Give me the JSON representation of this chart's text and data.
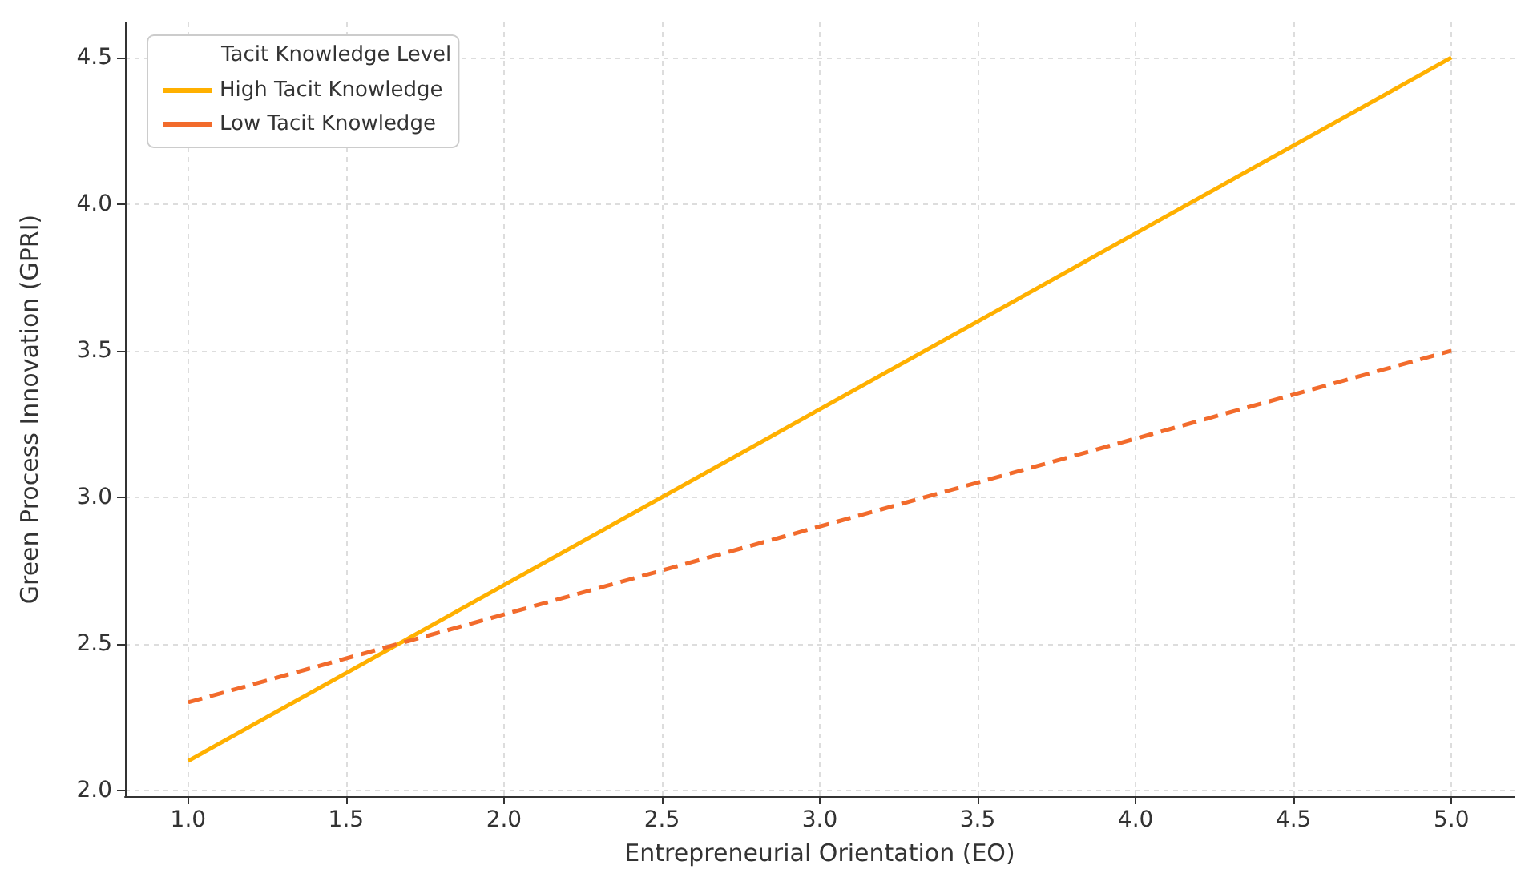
{
  "chart_data": {
    "type": "line",
    "xlabel": "Entrepreneurial Orientation (EO)",
    "ylabel": "Green Process Innovation (GPRI)",
    "legend_title": "Tacit Knowledge Level",
    "x": [
      1,
      5
    ],
    "series": [
      {
        "name": "High Tacit Knowledge",
        "color": "#ffb000",
        "values": [
          2.1,
          4.5
        ],
        "line_style": "solid"
      },
      {
        "name": "Low Tacit Knowledge",
        "color": "#f26b2c",
        "values": [
          2.3,
          3.5
        ],
        "line_style": "dashed"
      }
    ],
    "xlim": [
      0.8,
      5.2
    ],
    "ylim": [
      1.98,
      4.62
    ],
    "xticks": [
      {
        "value": 1,
        "label": "1.0"
      },
      {
        "value": 1.5,
        "label": "1.5"
      },
      {
        "value": 2,
        "label": "2.0"
      },
      {
        "value": 2.5,
        "label": "2.5"
      },
      {
        "value": 3,
        "label": "3.0"
      },
      {
        "value": 3.5,
        "label": "3.5"
      },
      {
        "value": 4,
        "label": "4.0"
      },
      {
        "value": 4.5,
        "label": "4.5"
      },
      {
        "value": 5,
        "label": "5.0"
      }
    ],
    "yticks": [
      {
        "value": 2,
        "label": "2.0"
      },
      {
        "value": 2.5,
        "label": "2.5"
      },
      {
        "value": 3,
        "label": "3.0"
      },
      {
        "value": 3.5,
        "label": "3.5"
      },
      {
        "value": 4,
        "label": "4.0"
      },
      {
        "value": 4.5,
        "label": "4.5"
      }
    ],
    "grid": true,
    "legend": "top left"
  }
}
